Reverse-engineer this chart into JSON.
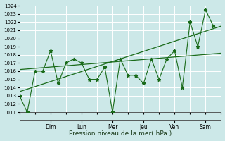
{
  "ylabel": "Pression niveau de la mer( hPa )",
  "ylim": [
    1011,
    1024
  ],
  "yticks": [
    1011,
    1012,
    1013,
    1014,
    1015,
    1016,
    1017,
    1018,
    1019,
    1020,
    1021,
    1022,
    1023,
    1024
  ],
  "x_day_labels": [
    "Dim",
    "Lun",
    "Mer",
    "Jeu",
    "Ven",
    "Sam"
  ],
  "x_day_positions": [
    2,
    4,
    6,
    8,
    10,
    12
  ],
  "x_vline_positions": [
    1,
    3,
    5,
    7,
    9,
    11,
    13
  ],
  "xlim": [
    0,
    13
  ],
  "background_color": "#cce8e8",
  "grid_color": "#ffffff",
  "line_color": "#1a6b1a",
  "series1_x": [
    0.0,
    0.5,
    1.0,
    1.5,
    2.0,
    2.5,
    3.0,
    3.5,
    4.0,
    4.5,
    5.0,
    5.5,
    6.0,
    6.5,
    7.0,
    7.5,
    8.0,
    8.5,
    9.0,
    9.5,
    10.0,
    10.5,
    11.0,
    11.5,
    12.0,
    12.5
  ],
  "series1_y": [
    1013.0,
    1011.0,
    1016.0,
    1016.0,
    1018.5,
    1014.5,
    1017.0,
    1017.5,
    1017.0,
    1015.0,
    1015.0,
    1016.5,
    1011.0,
    1017.5,
    1015.5,
    1015.5,
    1014.5,
    1017.5,
    1015.0,
    1017.5,
    1018.5,
    1014.0,
    1022.0,
    1019.0,
    1023.5,
    1021.5
  ],
  "trend1_x": [
    0,
    13
  ],
  "trend1_y": [
    1016.2,
    1018.2
  ],
  "trend2_x": [
    0,
    13
  ],
  "trend2_y": [
    1013.5,
    1021.5
  ],
  "title_fontsize": 6,
  "tick_fontsize": 5,
  "label_fontsize": 6.5
}
